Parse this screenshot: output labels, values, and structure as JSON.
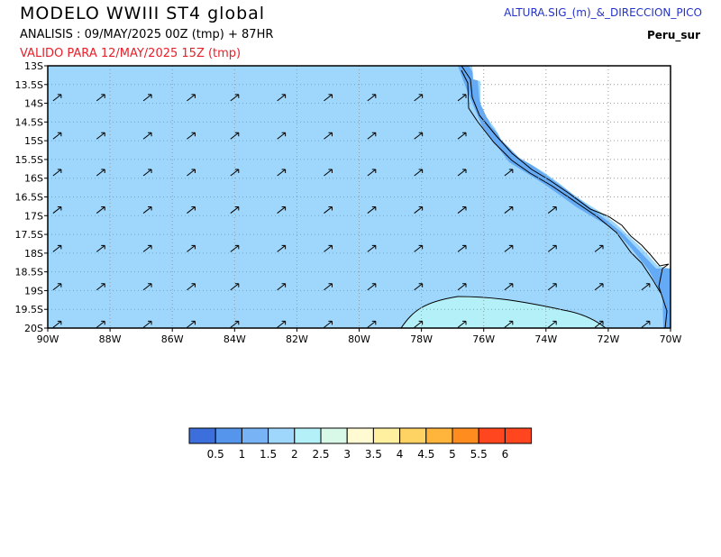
{
  "header": {
    "title": "MODELO  WWIII  ST4  global",
    "analysis": "ANALISIS : 09/MAY/2025 00Z   (tmp) + 87HR",
    "valid": "VALIDO PARA  12/MAY/2025 15Z  (tmp)",
    "variable": "ALTURA.SIG_(m)_&_DIRECCION_PICO",
    "region": "Peru_sur"
  },
  "map": {
    "lon_range": [
      -90,
      -70
    ],
    "lat_range": [
      -20,
      -13
    ],
    "x_tick_labels": [
      "90W",
      "88W",
      "86W",
      "84W",
      "82W",
      "80W",
      "78W",
      "76W",
      "74W",
      "72W",
      "70W"
    ],
    "y_tick_labels": [
      "13S",
      "13.5S",
      "14S",
      "14.5S",
      "15S",
      "15.5S",
      "16S",
      "16.5S",
      "17S",
      "17.5S",
      "18S",
      "18.5S",
      "19S",
      "19.5S",
      "20S"
    ],
    "grid": "dotted",
    "land_color": "#ffffff",
    "sea_color": "#9ed7fb",
    "low_wave_color": "#64aaf5",
    "high_wave_color": "#b4f0f8",
    "arrow_direction": "NE"
  },
  "colorbar": {
    "labels": [
      "0.5",
      "1",
      "1.5",
      "2",
      "2.5",
      "3",
      "3.5",
      "4",
      "4.5",
      "5",
      "5.5",
      "6"
    ],
    "colors": [
      "#3c6fdc",
      "#5596ec",
      "#78b4f5",
      "#9ed7fb",
      "#b4f0f8",
      "#d8f8e8",
      "#fffad2",
      "#fff0a0",
      "#ffd264",
      "#ffb43c",
      "#ff8c1e",
      "#ff461e"
    ]
  }
}
